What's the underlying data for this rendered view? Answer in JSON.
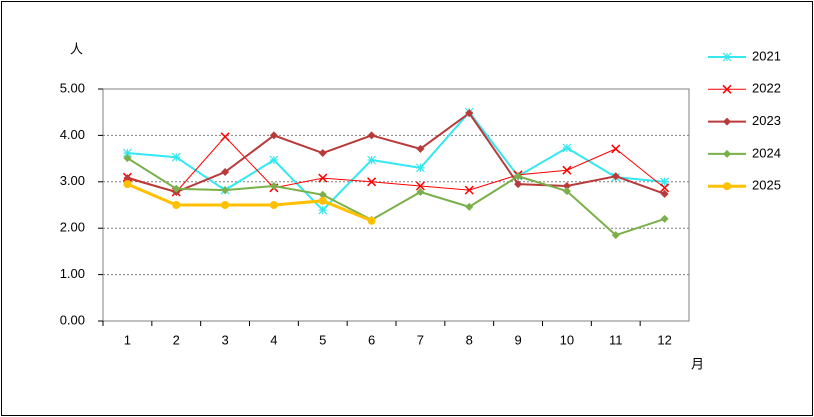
{
  "chart_data": {
    "type": "line",
    "ylabel": "人",
    "xlabel": "月",
    "categories": [
      "1",
      "2",
      "3",
      "4",
      "5",
      "6",
      "7",
      "8",
      "9",
      "10",
      "11",
      "12"
    ],
    "ylim": [
      0,
      5
    ],
    "yticks": [
      {
        "value": 0,
        "label": "0.00"
      },
      {
        "value": 1,
        "label": "1.00"
      },
      {
        "value": 2,
        "label": "2.00"
      },
      {
        "value": 3,
        "label": "3.00"
      },
      {
        "value": 4,
        "label": "4.00"
      },
      {
        "value": 5,
        "label": "5.00"
      }
    ],
    "grid": true,
    "legend": "right",
    "series": [
      {
        "name": "2021",
        "color": "#33e8f0",
        "marker": "asterisk",
        "values": [
          3.62,
          3.53,
          2.82,
          3.47,
          2.39,
          3.47,
          3.3,
          4.5,
          3.12,
          3.73,
          3.1,
          3.0
        ]
      },
      {
        "name": "2022",
        "color": "#ff0000",
        "marker": "x",
        "values": [
          3.1,
          2.78,
          3.97,
          2.87,
          3.08,
          3.0,
          2.91,
          2.82,
          3.15,
          3.25,
          3.71,
          2.87
        ]
      },
      {
        "name": "2023",
        "color": "#b83a3a",
        "marker": "diamond",
        "values": [
          3.08,
          2.78,
          3.21,
          4.0,
          3.62,
          4.0,
          3.71,
          4.48,
          2.95,
          2.91,
          3.12,
          2.74
        ]
      },
      {
        "name": "2024",
        "color": "#7ab04a",
        "marker": "diamond",
        "values": [
          3.51,
          2.85,
          2.82,
          2.91,
          2.72,
          2.18,
          2.78,
          2.46,
          3.12,
          2.8,
          1.85,
          2.2
        ]
      },
      {
        "name": "2025",
        "color": "#ffc000",
        "marker": "circle",
        "values": [
          2.95,
          2.5,
          2.5,
          2.5,
          2.59,
          2.16,
          null,
          null,
          null,
          null,
          null,
          null
        ]
      }
    ]
  }
}
